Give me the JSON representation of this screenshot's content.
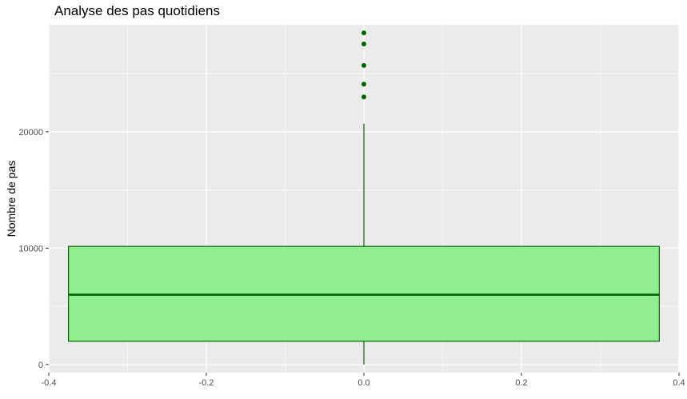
{
  "chart_data": {
    "type": "boxplot",
    "title": "Analyse des pas quotidiens",
    "xlabel": "",
    "ylabel": "Nombre de pas",
    "xlim": [
      -0.4,
      0.4
    ],
    "ylim": [
      -700,
      29200
    ],
    "x_ticks": [
      -0.4,
      -0.2,
      0.0,
      0.2,
      0.4
    ],
    "x_tick_labels": [
      "-0.4",
      "-0.2",
      "0.0",
      "0.2",
      "0.4"
    ],
    "y_ticks": [
      0,
      10000,
      20000
    ],
    "y_tick_labels": [
      "0",
      "10000",
      "20000"
    ],
    "grid": true,
    "box": {
      "x_center": 0.0,
      "x_left": -0.375,
      "x_right": 0.375,
      "whisker_low": 0,
      "q1": 2000,
      "median": 6000,
      "q3": 10150,
      "whisker_high": 20700
    },
    "outliers": [
      23000,
      24100,
      25700,
      27550,
      28500
    ],
    "colors": {
      "panel_background": "#ebebeb",
      "grid": "#ffffff",
      "box_fill": "#90ee90",
      "box_stroke": "#006400",
      "outlier": "#006400"
    }
  }
}
